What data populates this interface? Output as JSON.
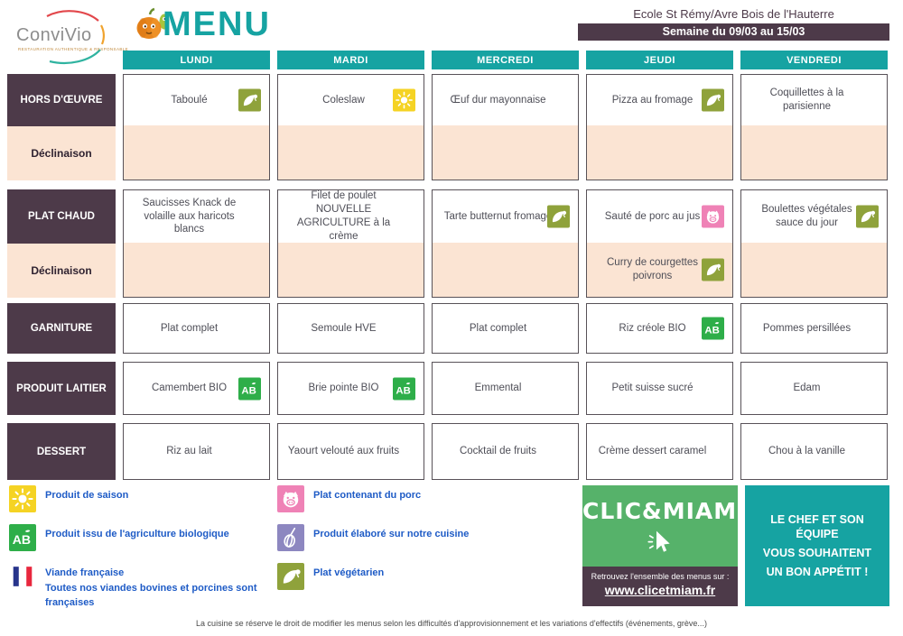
{
  "header": {
    "brand": "ConviVio",
    "brand_tagline": "restauration authentique & responsable",
    "title": "MENU",
    "school": "Ecole St Rémy/Avre Bois de l'Hauterre",
    "week": "Semaine du 09/03 au 15/03"
  },
  "days": [
    "LUNDI",
    "MARDI",
    "MERCREDI",
    "JEUDI",
    "VENDREDI"
  ],
  "groups": [
    {
      "label": "HORS D'ŒUVRE",
      "sublabel": "Déclinaison",
      "cells": [
        {
          "text": "Taboulé",
          "icon": "vegetarian",
          "sub_text": "",
          "sub_icon": ""
        },
        {
          "text": "Coleslaw",
          "icon": "season",
          "sub_text": "",
          "sub_icon": ""
        },
        {
          "text": "Œuf dur mayonnaise",
          "icon": "",
          "sub_text": "",
          "sub_icon": ""
        },
        {
          "text": "Pizza au fromage",
          "icon": "vegetarian",
          "sub_text": "",
          "sub_icon": ""
        },
        {
          "text": "Coquillettes à la parisienne",
          "icon": "",
          "sub_text": "",
          "sub_icon": ""
        }
      ]
    },
    {
      "label": "PLAT CHAUD",
      "sublabel": "Déclinaison",
      "cells": [
        {
          "text": "Saucisses Knack de volaille aux haricots blancs",
          "icon": "",
          "sub_text": "",
          "sub_icon": ""
        },
        {
          "text": "Filet de poulet NOUVELLE AGRICULTURE à la crème",
          "icon": "",
          "sub_text": "",
          "sub_icon": ""
        },
        {
          "text": "Tarte butternut fromage",
          "icon": "vegetarian",
          "sub_text": "",
          "sub_icon": ""
        },
        {
          "text": "Sauté de porc au jus",
          "icon": "pork",
          "sub_text": "Curry de courgettes poivrons",
          "sub_icon": "vegetarian"
        },
        {
          "text": "Boulettes végétales sauce du jour",
          "icon": "vegetarian",
          "sub_text": "",
          "sub_icon": ""
        }
      ]
    },
    {
      "label": "GARNITURE",
      "cells": [
        {
          "text": "Plat complet",
          "icon": ""
        },
        {
          "text": "Semoule HVE",
          "icon": ""
        },
        {
          "text": "Plat complet",
          "icon": ""
        },
        {
          "text": "Riz créole BIO",
          "icon": "bio"
        },
        {
          "text": "Pommes persillées",
          "icon": ""
        }
      ]
    },
    {
      "label": "PRODUIT LAITIER",
      "cells": [
        {
          "text": "Camembert BIO",
          "icon": "bio"
        },
        {
          "text": "Brie pointe BIO",
          "icon": "bio"
        },
        {
          "text": "Emmental",
          "icon": ""
        },
        {
          "text": "Petit suisse sucré",
          "icon": ""
        },
        {
          "text": "Edam",
          "icon": ""
        }
      ]
    },
    {
      "label": "DESSERT",
      "cells": [
        {
          "text": "Riz au lait",
          "icon": ""
        },
        {
          "text": "Yaourt velouté aux fruits",
          "icon": ""
        },
        {
          "text": "Cocktail de fruits",
          "icon": ""
        },
        {
          "text": "Crème dessert caramel",
          "icon": ""
        },
        {
          "text": "Chou à la vanille",
          "icon": ""
        }
      ]
    }
  ],
  "legend": {
    "items_left": [
      {
        "icon": "season",
        "label": "Produit de saison",
        "sublabel": ""
      },
      {
        "icon": "bio",
        "label": "Produit issu de l'agriculture biologique",
        "sublabel": ""
      },
      {
        "icon": "flag",
        "label": "Viande française",
        "sublabel": "Toutes nos viandes bovines et porcines sont françaises"
      }
    ],
    "items_right": [
      {
        "icon": "pork",
        "label": "Plat contenant du porc"
      },
      {
        "icon": "homemade",
        "label": "Produit élaboré sur notre cuisine"
      },
      {
        "icon": "vegetarian",
        "label": "Plat végétarien"
      }
    ]
  },
  "footer": {
    "clicmiam_title": "CLIC&MIAM!",
    "clicmiam_note": "Retrouvez l'ensemble des menus sur :",
    "clicmiam_url": "www.clicetmiam.fr",
    "chef_message": [
      "LE CHEF ET SON ÉQUIPE",
      "VOUS SOUHAITENT",
      "UN BON APPÉTIT !"
    ],
    "disclaimer": "La cuisine se réserve le droit de modifier les menus selon les difficultés d'approvisionnement et les variations d'effectifs (événements, grève...)"
  },
  "colors": {
    "teal": "#16a3a2",
    "purple": "#4d3a49",
    "cream": "#fbe4d3",
    "legend_blue": "#1e5bc6",
    "vegetarian_green": "#8fa23b",
    "season_yellow": "#f5d324",
    "bio_green": "#2eae49",
    "pork_pink": "#ef82b6",
    "homemade_purple": "#8d87c0",
    "clicmiam_green": "#56b26a"
  }
}
